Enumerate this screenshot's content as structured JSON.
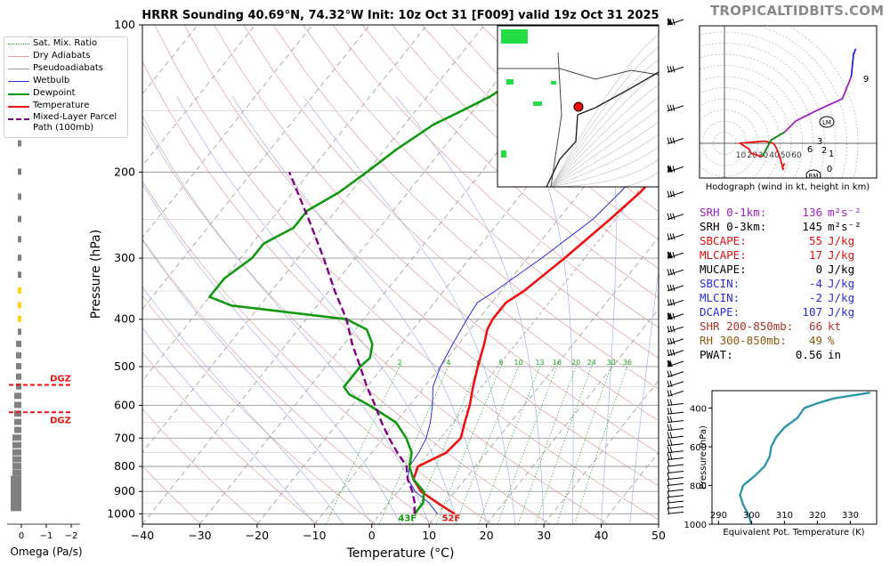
{
  "brand": "TROPICALTIDBITS.COM",
  "title": "HRRR Sounding 40.69°N, 74.32°W Init: 10z Oct 31 [F009] valid 19z Oct 31 2025",
  "legend": [
    {
      "label": "Sat. Mix. Ratio",
      "color": "#2ca02c",
      "style": "dotted"
    },
    {
      "label": "Dry Adiabats",
      "color": "#d9a0a0",
      "style": "solid"
    },
    {
      "label": "Pseudoadiabats",
      "color": "#9a9a9a",
      "style": "solid"
    },
    {
      "label": "Wetbulb",
      "color": "#2a2ae0",
      "style": "solid"
    },
    {
      "label": "Dewpoint",
      "color": "#119911",
      "style": "thick"
    },
    {
      "label": "Temperature",
      "color": "#ee1111",
      "style": "thick"
    },
    {
      "label": "Mixed-Layer Parcel Path (100mb)",
      "color": "#800080",
      "style": "dashed"
    }
  ],
  "colors": {
    "temperature": "#ee1111",
    "dewpoint": "#119911",
    "wetbulb": "#2a2ae0",
    "parcel": "#800080",
    "hodograph": "#a020c0",
    "theta_e": "#2f96a8",
    "omega": "#808080",
    "dgz": "#ee1111"
  },
  "chart_data": [
    {
      "type": "line",
      "name": "skew-t",
      "xlabel": "Temperature (°C)",
      "ylabel": "Pressure (hPa)",
      "xlim": [
        -40,
        50
      ],
      "ylim": [
        1050,
        100
      ],
      "y_scale": "log",
      "x_ticks": [
        "−40",
        "−30",
        "−20",
        "−10",
        "0",
        "10",
        "20",
        "30",
        "40",
        "50"
      ],
      "y_ticks": [
        100,
        200,
        300,
        400,
        500,
        600,
        700,
        800,
        900,
        1000
      ],
      "mixing_ratio_labels": [
        "2",
        "4",
        "6",
        "8",
        "10",
        "13",
        "16",
        "20",
        "24",
        "30",
        "36"
      ],
      "surface_labels": {
        "dewpoint": "43F",
        "temperature": "52F"
      },
      "series": [
        {
          "key": "temperature",
          "points": [
            [
              1000,
              13
            ],
            [
              950,
              8.5
            ],
            [
              900,
              4
            ],
            [
              850,
              1
            ],
            [
              800,
              0
            ],
            [
              750,
              3
            ],
            [
              700,
              3.5
            ],
            [
              650,
              2
            ],
            [
              600,
              0.5
            ],
            [
              550,
              -1.5
            ],
            [
              500,
              -3.5
            ],
            [
              450,
              -5.5
            ],
            [
              420,
              -7
            ],
            [
              400,
              -7.5
            ],
            [
              370,
              -7.5
            ],
            [
              350,
              -6
            ],
            [
              300,
              -3.5
            ],
            [
              250,
              -1
            ],
            [
              220,
              0.5
            ],
            [
              200,
              1
            ],
            [
              180,
              1.5
            ],
            [
              150,
              2
            ],
            [
              130,
              2.5
            ],
            [
              100,
              4.5
            ]
          ]
        },
        {
          "key": "wetbulb",
          "points": [
            [
              1000,
              10
            ],
            [
              950,
              7
            ],
            [
              900,
              3
            ],
            [
              850,
              0
            ],
            [
              800,
              -1.5
            ],
            [
              750,
              -1.8
            ],
            [
              700,
              -2.5
            ],
            [
              650,
              -4
            ],
            [
              600,
              -6
            ],
            [
              550,
              -8.5
            ],
            [
              500,
              -10
            ],
            [
              450,
              -11
            ],
            [
              400,
              -12
            ],
            [
              370,
              -12.5
            ],
            [
              350,
              -11
            ],
            [
              300,
              -7.5
            ],
            [
              250,
              -4
            ],
            [
              220,
              -3
            ],
            [
              200,
              -2.5
            ],
            [
              180,
              -2
            ],
            [
              160,
              -1.5
            ],
            [
              150,
              -0.5
            ],
            [
              130,
              1.5
            ],
            [
              100,
              4
            ]
          ]
        },
        {
          "key": "dewpoint",
          "points": [
            [
              1000,
              6
            ],
            [
              950,
              6
            ],
            [
              900,
              4.5
            ],
            [
              850,
              1
            ],
            [
              800,
              -1.5
            ],
            [
              750,
              -3
            ],
            [
              700,
              -6
            ],
            [
              650,
              -10
            ],
            [
              600,
              -17
            ],
            [
              570,
              -22
            ],
            [
              550,
              -24
            ],
            [
              500,
              -24
            ],
            [
              480,
              -23.5
            ],
            [
              450,
              -25
            ],
            [
              420,
              -28
            ],
            [
              400,
              -33
            ],
            [
              375,
              -55
            ],
            [
              360,
              -60
            ],
            [
              330,
              -60
            ],
            [
              300,
              -58
            ],
            [
              280,
              -58
            ],
            [
              260,
              -55
            ],
            [
              240,
              -55
            ],
            [
              220,
              -52
            ],
            [
              200,
              -50
            ],
            [
              180,
              -48
            ],
            [
              160,
              -45
            ],
            [
              150,
              -42
            ],
            [
              140,
              -39
            ],
            [
              120,
              -35
            ],
            [
              100,
              -35
            ]
          ]
        },
        {
          "key": "parcel",
          "points": [
            [
              1000,
              6
            ],
            [
              950,
              4.5
            ],
            [
              900,
              2.5
            ],
            [
              850,
              0
            ],
            [
              800,
              -2
            ],
            [
              750,
              -5.5
            ],
            [
              700,
              -9
            ],
            [
              650,
              -12.5
            ],
            [
              600,
              -16
            ],
            [
              550,
              -20
            ],
            [
              500,
              -24
            ],
            [
              450,
              -28.5
            ],
            [
              400,
              -33
            ],
            [
              350,
              -39
            ],
            [
              300,
              -45.5
            ],
            [
              250,
              -53.5
            ],
            [
              200,
              -63.5
            ]
          ]
        }
      ]
    },
    {
      "type": "scatter",
      "name": "hodograph",
      "title": "Hodograph (wind in kt, height in km)",
      "ring_labels": [
        "10",
        "20",
        "30",
        "40",
        "50",
        "60"
      ],
      "height_labels": [
        "0",
        "1",
        "2",
        "3",
        "6",
        "9"
      ],
      "markers": [
        "LM",
        "RM"
      ],
      "points": [
        [
          10,
          -18
        ],
        [
          8,
          -22
        ],
        [
          9,
          -24
        ],
        [
          5,
          -10
        ],
        [
          2,
          -3
        ],
        [
          0,
          0
        ],
        [
          -8,
          2
        ],
        [
          -20,
          1
        ],
        [
          -30,
          0
        ],
        [
          -22,
          -5
        ],
        [
          -20,
          -9
        ],
        [
          -10,
          -12
        ],
        [
          -2,
          3
        ],
        [
          10,
          10
        ],
        [
          20,
          20
        ],
        [
          40,
          30
        ],
        [
          62,
          40
        ],
        [
          70,
          60
        ],
        [
          72,
          80
        ],
        [
          74,
          85
        ]
      ]
    },
    {
      "type": "line",
      "name": "equivalent-potential-temperature",
      "xlabel": "Equivalent Pot. Temperature (K)",
      "ylabel": "Pressure (hPa)",
      "xlim": [
        288,
        338
      ],
      "ylim": [
        1000,
        310
      ],
      "x_ticks": [
        "290",
        "300",
        "310",
        "320",
        "330"
      ],
      "y_ticks": [
        "400",
        "600",
        "800",
        "1000"
      ],
      "points": [
        [
          1000,
          300
        ],
        [
          950,
          299
        ],
        [
          900,
          297.5
        ],
        [
          850,
          296.5
        ],
        [
          800,
          297.5
        ],
        [
          750,
          301
        ],
        [
          700,
          304
        ],
        [
          650,
          305.5
        ],
        [
          600,
          306
        ],
        [
          550,
          307.5
        ],
        [
          500,
          310
        ],
        [
          450,
          314
        ],
        [
          400,
          316
        ],
        [
          375,
          320
        ],
        [
          350,
          325
        ],
        [
          320,
          336
        ]
      ]
    },
    {
      "type": "bar",
      "name": "omega",
      "xlabel": "Omega (Pa/s)",
      "x_ticks": [
        "0",
        "−1",
        "−2"
      ],
      "dgz_labels": [
        "DGZ",
        "DGZ"
      ],
      "dgz_levels": [
        545,
        620
      ]
    }
  ],
  "indices": [
    {
      "label": "SRH 0-1km:",
      "value": "136",
      "unit": "m²s⁻²",
      "color": "#a020c0"
    },
    {
      "label": "SRH 0-3km:",
      "value": "145",
      "unit": "m²s⁻²",
      "color": "#000000"
    },
    {
      "label": "SBCAPE:",
      "value": "55",
      "unit": "J/kg",
      "color": "#e01010"
    },
    {
      "label": "MLCAPE:",
      "value": "17",
      "unit": "J/kg",
      "color": "#e01010"
    },
    {
      "label": "MUCAPE:",
      "value": "0",
      "unit": "J/kg",
      "color": "#000000"
    },
    {
      "label": "SBCIN:",
      "value": "-4",
      "unit": "J/kg",
      "color": "#2a2ae0"
    },
    {
      "label": "MLCIN:",
      "value": "-2",
      "unit": "J/kg",
      "color": "#2a2ae0"
    },
    {
      "label": "DCAPE:",
      "value": "107",
      "unit": "J/kg",
      "color": "#2a2ae0"
    },
    {
      "label": "SHR 200-850mb:",
      "value": "66",
      "unit": "kt",
      "color": "#b0302a"
    },
    {
      "label": "RH 300-850mb:",
      "value": "49",
      "unit": "%",
      "color": "#8a5a10"
    },
    {
      "label": "PWAT:",
      "value": "0.56",
      "unit": "in",
      "color": "#000000"
    }
  ]
}
